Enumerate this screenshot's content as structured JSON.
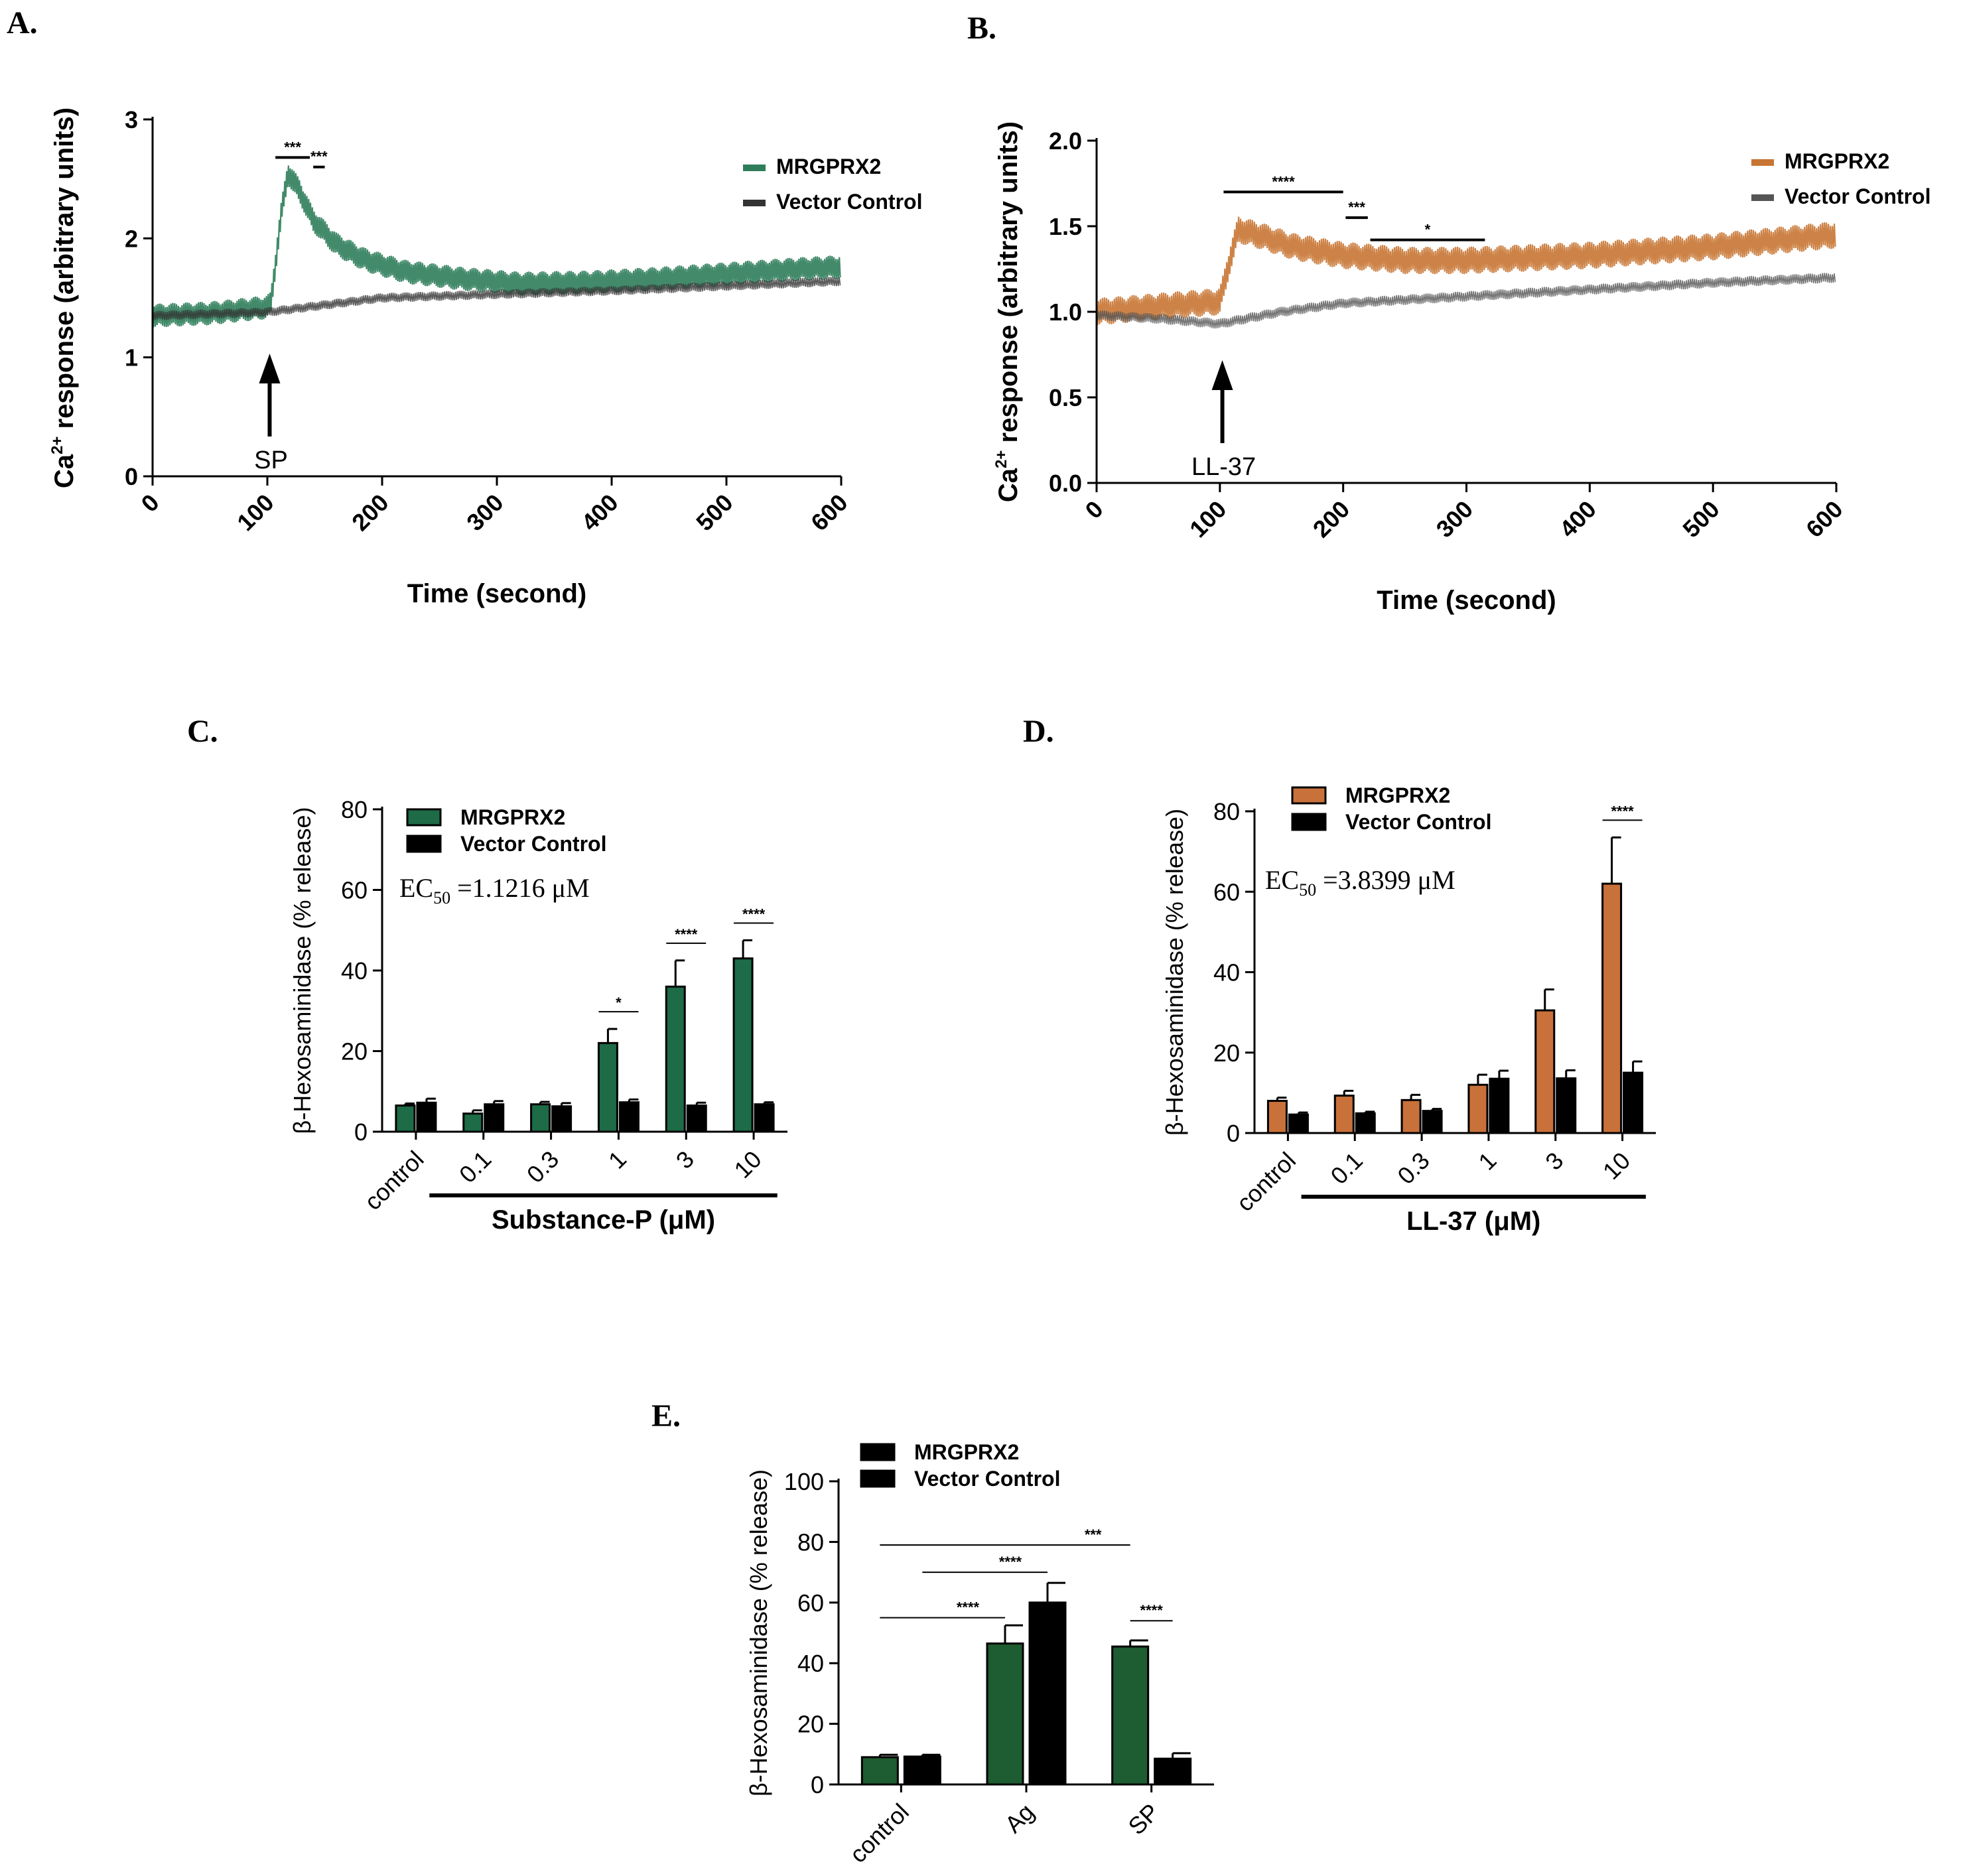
{
  "chart_data": [
    {
      "id": "A",
      "panel_label": "A.",
      "type": "line",
      "ylabel_main": "Ca",
      "ylabel_sup": "2+",
      "ylabel_rest": " response (arbitrary units)",
      "xlabel": "Time (second)",
      "xticks": [
        "0",
        "100",
        "200",
        "300",
        "400",
        "500",
        "600"
      ],
      "yticks": [
        "0",
        "1",
        "2",
        "3"
      ],
      "xlim": [
        0,
        600
      ],
      "ylim": [
        0,
        3
      ],
      "series": [
        {
          "name": "MRGPRX2",
          "color": "#2e7d5a",
          "x": [
            0,
            50,
            99,
            103,
            112,
            118,
            128,
            140,
            160,
            185,
            220,
            270,
            320,
            380,
            440,
            500,
            560,
            600
          ],
          "y": [
            1.35,
            1.37,
            1.42,
            1.45,
            2.2,
            2.55,
            2.4,
            2.15,
            1.95,
            1.82,
            1.72,
            1.66,
            1.62,
            1.63,
            1.66,
            1.7,
            1.74,
            1.76
          ],
          "spread": 0.1
        },
        {
          "name": "Vector Control",
          "color": "#333333",
          "x": [
            0,
            100,
            200,
            300,
            400,
            500,
            600
          ],
          "y": [
            1.35,
            1.38,
            1.5,
            1.53,
            1.56,
            1.6,
            1.64
          ],
          "spread": 0.04
        }
      ],
      "annotations": [
        {
          "text": "***",
          "x1": 107,
          "x2": 137,
          "y": 2.68
        },
        {
          "text": "***",
          "x1": 140,
          "x2": 150,
          "y": 2.6
        }
      ],
      "arrow": {
        "x": 102,
        "label": "SP"
      }
    },
    {
      "id": "B",
      "panel_label": "B.",
      "type": "line",
      "ylabel_main": "Ca",
      "ylabel_sup": "2+",
      "ylabel_rest": " response (arbitrary units)",
      "xlabel": "Time (second)",
      "xticks": [
        "0",
        "100",
        "200",
        "300",
        "400",
        "500",
        "600"
      ],
      "yticks": [
        "0.0",
        "0.5",
        "1.0",
        "1.5",
        "2.0"
      ],
      "xlim": [
        0,
        600
      ],
      "ylim": [
        0,
        2
      ],
      "series": [
        {
          "name": "MRGPRX2",
          "color": "#c87533",
          "x": [
            0,
            50,
            100,
            108,
            115,
            130,
            160,
            200,
            250,
            300,
            400,
            500,
            600
          ],
          "y": [
            1.0,
            1.03,
            1.06,
            1.3,
            1.48,
            1.45,
            1.38,
            1.33,
            1.3,
            1.3,
            1.33,
            1.38,
            1.45
          ],
          "spread": 0.08
        },
        {
          "name": "Vector Control",
          "color": "#555555",
          "x": [
            0,
            50,
            100,
            150,
            200,
            300,
            400,
            500,
            600
          ],
          "y": [
            0.98,
            0.96,
            0.93,
            1.0,
            1.05,
            1.09,
            1.13,
            1.17,
            1.2
          ],
          "spread": 0.03
        }
      ],
      "annotations": [
        {
          "text": "****",
          "x1": 103,
          "x2": 200,
          "y": 1.7
        },
        {
          "text": "***",
          "x1": 202,
          "x2": 220,
          "y": 1.55
        },
        {
          "text": "*",
          "x1": 222,
          "x2": 315,
          "y": 1.42
        }
      ],
      "arrow": {
        "x": 102,
        "label": "LL-37"
      }
    },
    {
      "id": "C",
      "panel_label": "C.",
      "type": "bar",
      "ylabel": "β-Hexosaminidase (% release)",
      "xlabel": "Substance-P (μM)",
      "categories": [
        "control",
        "0.1",
        "0.3",
        "1",
        "3",
        "10"
      ],
      "yticks": [
        "0",
        "20",
        "40",
        "60",
        "80"
      ],
      "ylim": [
        0,
        80
      ],
      "series": [
        {
          "name": "MRGPRX2",
          "color": "#1d6b47",
          "values": [
            6.5,
            4.5,
            6.8,
            22,
            36,
            43
          ],
          "errors": [
            0.5,
            0.8,
            0.6,
            3.5,
            6.5,
            4.5
          ]
        },
        {
          "name": "Vector Control",
          "color": "#000000",
          "values": [
            7.2,
            6.8,
            6.3,
            7.3,
            6.5,
            6.8
          ],
          "errors": [
            1.0,
            0.8,
            0.8,
            0.7,
            0.7,
            0.5
          ]
        }
      ],
      "ec50_prefix": "EC",
      "ec50_sub": "50",
      "ec50_value": " =1.1216 μM",
      "significance": [
        {
          "category": 3,
          "text": "*"
        },
        {
          "category": 4,
          "text": "****"
        },
        {
          "category": 5,
          "text": "****"
        }
      ]
    },
    {
      "id": "D",
      "panel_label": "D.",
      "type": "bar",
      "ylabel": "β-Hexosaminidase (% release)",
      "xlabel": "LL-37 (μM)",
      "categories": [
        "control",
        "0.1",
        "0.3",
        "1",
        "3",
        "10"
      ],
      "yticks": [
        "0",
        "20",
        "40",
        "60",
        "80"
      ],
      "ylim": [
        0,
        80
      ],
      "series": [
        {
          "name": "MRGPRX2",
          "color": "#c8713a",
          "values": [
            8,
            9.3,
            8.2,
            12,
            30.5,
            62
          ],
          "errors": [
            0.8,
            1.2,
            1.3,
            2.5,
            5.2,
            11.5
          ]
        },
        {
          "name": "Vector Control",
          "color": "#000000",
          "values": [
            4.6,
            4.9,
            5.5,
            13.5,
            13.6,
            15
          ],
          "errors": [
            0.5,
            0.4,
            0.5,
            2.0,
            2.0,
            2.8
          ]
        }
      ],
      "ec50_prefix": "EC",
      "ec50_sub": "50",
      "ec50_value": " =3.8399 μM",
      "significance": [
        {
          "category": 5,
          "text": "****"
        }
      ]
    },
    {
      "id": "E",
      "panel_label": "E.",
      "type": "bar",
      "ylabel": "β-Hexosaminidase (% release)",
      "xlabel": "",
      "categories": [
        "control",
        "Ag",
        "SP"
      ],
      "yticks": [
        "0",
        "20",
        "40",
        "60",
        "80",
        "100"
      ],
      "ylim": [
        0,
        100
      ],
      "series": [
        {
          "name": "MRGPRX2",
          "color": "#1e5c31",
          "values": [
            9,
            46.5,
            45.5
          ],
          "errors": [
            0.8,
            6,
            2
          ]
        },
        {
          "name": "Vector Control",
          "color": "#000000",
          "values": [
            9.2,
            60,
            8.5
          ],
          "errors": [
            0.6,
            6.5,
            1.8
          ]
        }
      ],
      "legend_swatch_color": "#000000",
      "significance_lines": [
        {
          "text": "***",
          "from_cat": 0,
          "from_series": 0,
          "to_cat": 2,
          "to_series": 0,
          "y": 79
        },
        {
          "text": "****",
          "from_cat": 0,
          "from_series": 1,
          "to_cat": 1,
          "to_series": 1,
          "y": 70
        },
        {
          "text": "****",
          "from_cat": 0,
          "from_series": 0,
          "to_cat": 1,
          "to_series": 0,
          "y": 55
        },
        {
          "text": "****",
          "from_cat": 2,
          "from_series": 0,
          "to_cat": 2,
          "to_series": 1,
          "y": 54
        }
      ]
    }
  ]
}
